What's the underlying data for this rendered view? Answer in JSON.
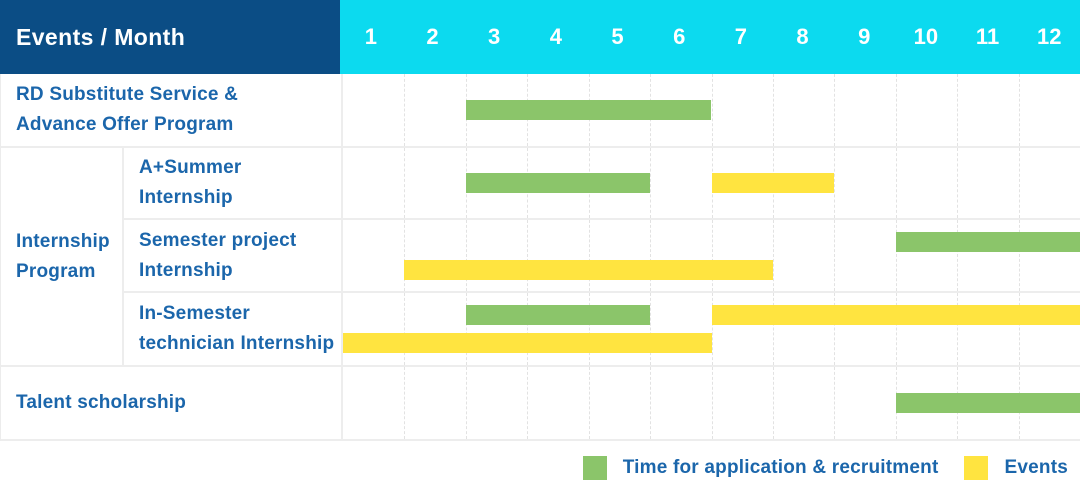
{
  "header": {
    "title": "Events / Month",
    "months": [
      "1",
      "2",
      "3",
      "4",
      "5",
      "6",
      "7",
      "8",
      "9",
      "10",
      "11",
      "12"
    ]
  },
  "colors": {
    "header_bg": "#0B4D85",
    "month_header_bg": "#0CDAEF",
    "label_text": "#1B66AB",
    "application": "#8BC56A",
    "events": "#FFE440",
    "grid_line": "#EDEDED"
  },
  "legend": [
    {
      "series": "application",
      "label": "Time for application & recruitment"
    },
    {
      "series": "events",
      "label": "Events"
    }
  ],
  "chart_data": {
    "type": "gantt",
    "title": "Events / Month",
    "x_axis": {
      "unit": "month",
      "ticks": [
        1,
        2,
        3,
        4,
        5,
        6,
        7,
        8,
        9,
        10,
        11,
        12
      ]
    },
    "series_legend": {
      "application": "Time for application & recruitment",
      "events": "Events"
    },
    "rows": [
      {
        "group": "",
        "label": "RD Substitute Service &\nAdvance Offer Program",
        "lanes": [
          [
            {
              "series": "application",
              "start": 3,
              "end": 6
            }
          ]
        ]
      },
      {
        "group": "Internship\nProgram",
        "label": "A+Summer\nInternship",
        "lanes": [
          [
            {
              "series": "application",
              "start": 3,
              "end": 5
            },
            {
              "series": "events",
              "start": 7,
              "end": 8
            }
          ]
        ]
      },
      {
        "group": "Internship\nProgram",
        "label": "Semester project\nInternship",
        "lanes": [
          [
            {
              "series": "application",
              "start": 10,
              "end": 12
            }
          ],
          [
            {
              "series": "events",
              "start": 2,
              "end": 7
            }
          ]
        ]
      },
      {
        "group": "Internship\nProgram",
        "label": "In-Semester\ntechnician Internship",
        "lanes": [
          [
            {
              "series": "application",
              "start": 3,
              "end": 5
            },
            {
              "series": "events",
              "start": 7,
              "end": 12
            }
          ],
          [
            {
              "series": "events",
              "start": 1,
              "end": 6
            }
          ]
        ]
      },
      {
        "group": "",
        "label": "Talent scholarship",
        "lanes": [
          [
            {
              "series": "application",
              "start": 10,
              "end": 12
            }
          ]
        ]
      }
    ]
  }
}
